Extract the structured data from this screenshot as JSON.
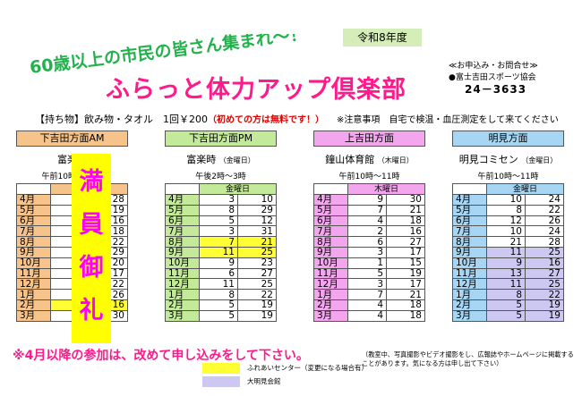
{
  "reiwa": "令和8年度",
  "headline": "60歳以上の市民の皆さん集まれ～！",
  "title": "ふらっと体力アップ倶楽部",
  "contact": {
    "line1": "≪お申込み・お問合せ≫",
    "line2": "●富士吉田スポーツ協会",
    "phone": "24－3633"
  },
  "items": {
    "label": "【持ち物】飲み物・タオル　1回￥200",
    "free": "（初めての方は無料です！）",
    "note": "※注意事項　自宅で検温・血圧測定をして来てください"
  },
  "panels": [
    {
      "header": "下吉田方面AM",
      "header_color": "#f6c38b",
      "venue": "富楽時",
      "day": "",
      "time": "午前10時～11時",
      "table_header": "",
      "rows": [
        {
          "m": "4月",
          "a": "",
          "b": "28"
        },
        {
          "m": "5月",
          "a": "",
          "b": "19"
        },
        {
          "m": "6月",
          "a": "",
          "b": "16"
        },
        {
          "m": "7月",
          "a": "",
          "b": "18"
        },
        {
          "m": "8月",
          "a": "",
          "b": "22"
        },
        {
          "m": "9月",
          "a": "",
          "b": "29"
        },
        {
          "m": "10月",
          "a": "",
          "b": "20"
        },
        {
          "m": "11月",
          "a": "",
          "b": "17"
        },
        {
          "m": "12月",
          "a": "",
          "b": "22"
        },
        {
          "m": "1月",
          "a": "",
          "b": "26"
        },
        {
          "m": "2月",
          "a": "",
          "b": "16"
        },
        {
          "m": "3月",
          "a": "",
          "b": "30"
        }
      ],
      "hl": {
        "10": "y"
      }
    },
    {
      "header": "下吉田方面PM",
      "header_color": "#c2ea98",
      "venue": "富楽時",
      "day": "（金曜日）",
      "time": "午後2時～3時",
      "table_header": "金曜日",
      "rows": [
        {
          "m": "4月",
          "a": "3",
          "b": "10"
        },
        {
          "m": "5月",
          "a": "8",
          "b": "29"
        },
        {
          "m": "6月",
          "a": "5",
          "b": "12"
        },
        {
          "m": "7月",
          "a": "3",
          "b": "31"
        },
        {
          "m": "8月",
          "a": "7",
          "b": "21"
        },
        {
          "m": "9月",
          "a": "11",
          "b": "25"
        },
        {
          "m": "10月",
          "a": "9",
          "b": "23"
        },
        {
          "m": "11月",
          "a": "6",
          "b": "27"
        },
        {
          "m": "12月",
          "a": "11",
          "b": "25"
        },
        {
          "m": "1月",
          "a": "8",
          "b": "22"
        },
        {
          "m": "2月",
          "a": "5",
          "b": "19"
        },
        {
          "m": "3月",
          "a": "5",
          "b": "19"
        }
      ],
      "hl": {
        "4": "y",
        "5": "y"
      }
    },
    {
      "header": "上吉田方面",
      "header_color": "#f3a6ee",
      "venue": "鐘山体育館",
      "day": "（木曜日）",
      "time": "午前10時～11時",
      "table_header": "木曜日",
      "rows": [
        {
          "m": "4月",
          "a": "9",
          "b": "30"
        },
        {
          "m": "5月",
          "a": "7",
          "b": "21"
        },
        {
          "m": "6月",
          "a": "4",
          "b": "18"
        },
        {
          "m": "7月",
          "a": "2",
          "b": "16"
        },
        {
          "m": "8月",
          "a": "6",
          "b": "27"
        },
        {
          "m": "9月",
          "a": "3",
          "b": "17"
        },
        {
          "m": "10月",
          "a": "1",
          "b": "15"
        },
        {
          "m": "11月",
          "a": "5",
          "b": "19"
        },
        {
          "m": "12月",
          "a": "3",
          "b": "17"
        },
        {
          "m": "1月",
          "a": "7",
          "b": "21"
        },
        {
          "m": "2月",
          "a": "4",
          "b": "18"
        },
        {
          "m": "3月",
          "a": "4",
          "b": "18"
        }
      ],
      "hl": {}
    },
    {
      "header": "明見方面",
      "header_color": "#a6d6f3",
      "venue": "明見コミセン",
      "day": "（金曜日）",
      "time": "午前10時～11時",
      "table_header": "金曜日",
      "rows": [
        {
          "m": "4月",
          "a": "10",
          "b": "24"
        },
        {
          "m": "5月",
          "a": "8",
          "b": "22"
        },
        {
          "m": "6月",
          "a": "12",
          "b": "26"
        },
        {
          "m": "7月",
          "a": "10",
          "b": "24"
        },
        {
          "m": "8月",
          "a": "21",
          "b": "28"
        },
        {
          "m": "9月",
          "a": "11",
          "b": "25"
        },
        {
          "m": "10月",
          "a": "9",
          "b": "16"
        },
        {
          "m": "11月",
          "a": "13",
          "b": "27"
        },
        {
          "m": "12月",
          "a": "11",
          "b": "25"
        },
        {
          "m": "1月",
          "a": "8",
          "b": "22"
        },
        {
          "m": "2月",
          "a": "5",
          "b": "19"
        },
        {
          "m": "3月",
          "a": "5",
          "b": "19"
        }
      ],
      "hl": {
        "5": "p",
        "6": "p",
        "7": "p",
        "8": "p",
        "9": "p",
        "10": "p",
        "11": "p"
      }
    }
  ],
  "full_label": "満員御礼",
  "footer": "※4月以降の参加は、改めて申し込みをして下さい。",
  "legend": [
    {
      "label": "ふれあいセンター（変更になる場合有）",
      "color": "#ffff33"
    },
    {
      "label": "大明見会館",
      "color": "#ccc8f2"
    }
  ],
  "notice": "（教室中、写真撮影やビデオ撮影をし、広報誌やホームページに掲載することがあります。気になる方は申し出て下さい）"
}
